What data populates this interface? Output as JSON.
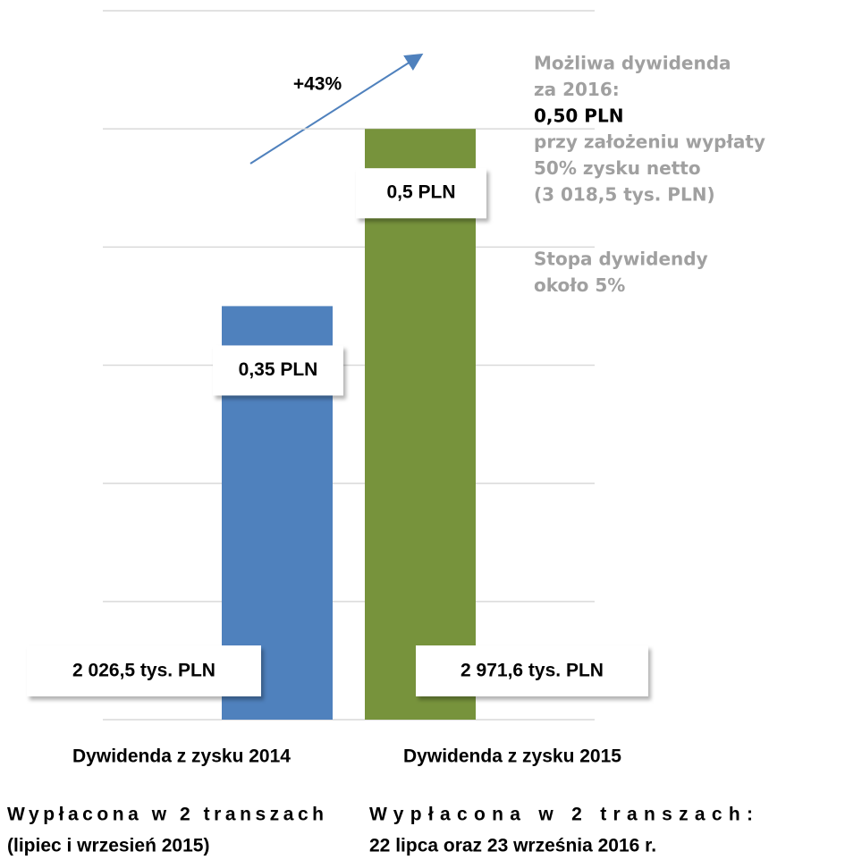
{
  "chart_data": {
    "type": "bar",
    "categories": [
      "Dywidenda z zysku 2014",
      "Dywidenda z zysku 2015"
    ],
    "values": [
      0.35,
      0.5
    ],
    "value_labels": [
      "0,35 PLN",
      "0,5 PLN"
    ],
    "colors": [
      "#4f81bd",
      "#77933c"
    ],
    "amount_labels": [
      "2 026,5 tys. PLN",
      "2 971,6 tys. PLN"
    ],
    "payout_notes": [
      [
        "Wypłacona w 2 transzach",
        "(lipiec i wrzesień 2015)"
      ],
      [
        "Wypłacona w 2 transzach:",
        "22 lipca oraz 23 września 2016 r."
      ]
    ],
    "growth_annotation": "+43%",
    "side_note": {
      "intro": [
        "Możliwa dywidenda",
        "za 2016:"
      ],
      "highlight": "0,50 PLN",
      "details": [
        "przy założeniu wypłaty",
        "50% zysku netto",
        "(3 018,5 tys. PLN)"
      ],
      "yield": [
        "Stopa dywidendy",
        "około 5%"
      ]
    },
    "ylim": [
      0,
      0.6
    ],
    "yticks": [
      0,
      0.1,
      0.2,
      0.3,
      0.4,
      0.5,
      0.6
    ],
    "grid": true
  }
}
